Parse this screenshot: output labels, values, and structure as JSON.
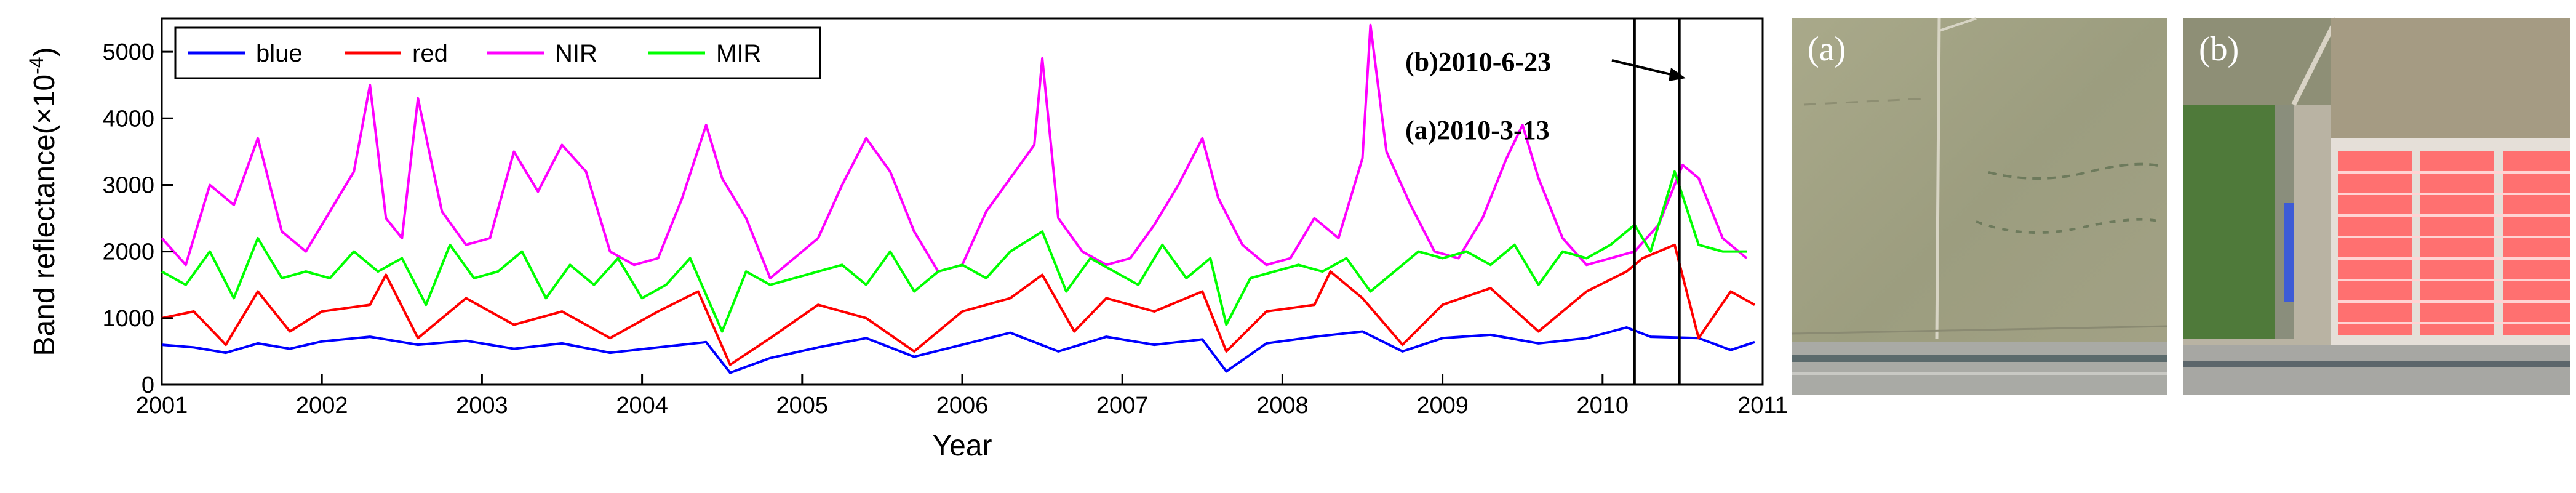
{
  "chart_data": {
    "type": "line",
    "xlabel": "Year",
    "ylabel": "Band reflectance(×10",
    "ylabel_exponent": "-4",
    "ylabel_close": ")",
    "xlim": [
      2001,
      2011
    ],
    "ylim": [
      0,
      5500
    ],
    "x_ticks": [
      "2001",
      "2002",
      "2003",
      "2004",
      "2005",
      "2006",
      "2007",
      "2008",
      "2009",
      "2010",
      "2011"
    ],
    "y_ticks": [
      "0",
      "1000",
      "2000",
      "3000",
      "4000",
      "5000"
    ],
    "legend_position": "top-left",
    "grid": false,
    "series": [
      {
        "name": "blue",
        "color": "#0000ff",
        "x": [
          2001.0,
          2001.2,
          2001.4,
          2001.6,
          2001.8,
          2002.0,
          2002.3,
          2002.6,
          2002.9,
          2003.2,
          2003.5,
          2003.8,
          2004.1,
          2004.4,
          2004.55,
          2004.8,
          2005.1,
          2005.4,
          2005.7,
          2006.0,
          2006.3,
          2006.6,
          2006.9,
          2007.2,
          2007.5,
          2007.65,
          2007.9,
          2008.2,
          2008.5,
          2008.75,
          2009.0,
          2009.3,
          2009.6,
          2009.9,
          2010.15,
          2010.3,
          2010.6,
          2010.8,
          2010.95
        ],
        "y": [
          600,
          560,
          480,
          620,
          540,
          650,
          720,
          600,
          660,
          540,
          620,
          480,
          560,
          640,
          180,
          400,
          560,
          700,
          420,
          600,
          780,
          500,
          720,
          600,
          680,
          200,
          620,
          720,
          800,
          500,
          700,
          750,
          620,
          700,
          860,
          720,
          700,
          520,
          640
        ]
      },
      {
        "name": "red",
        "color": "#ff0000",
        "x": [
          2001.0,
          2001.2,
          2001.4,
          2001.6,
          2001.8,
          2002.0,
          2002.3,
          2002.4,
          2002.6,
          2002.9,
          2003.2,
          2003.5,
          2003.8,
          2004.1,
          2004.35,
          2004.55,
          2004.8,
          2005.1,
          2005.4,
          2005.7,
          2006.0,
          2006.3,
          2006.5,
          2006.7,
          2006.9,
          2007.2,
          2007.5,
          2007.65,
          2007.9,
          2008.2,
          2008.3,
          2008.5,
          2008.75,
          2009.0,
          2009.3,
          2009.6,
          2009.9,
          2010.15,
          2010.25,
          2010.45,
          2010.6,
          2010.8,
          2010.95
        ],
        "y": [
          1000,
          1100,
          600,
          1400,
          800,
          1100,
          1200,
          1650,
          700,
          1300,
          900,
          1100,
          700,
          1100,
          1400,
          300,
          700,
          1200,
          1000,
          500,
          1100,
          1300,
          1650,
          800,
          1300,
          1100,
          1400,
          500,
          1100,
          1200,
          1700,
          1300,
          600,
          1200,
          1450,
          800,
          1400,
          1700,
          1900,
          2100,
          700,
          1400,
          1200
        ]
      },
      {
        "name": "NIR",
        "color": "#ff00ff",
        "x": [
          2001.0,
          2001.15,
          2001.3,
          2001.45,
          2001.6,
          2001.75,
          2001.9,
          2002.05,
          2002.2,
          2002.3,
          2002.4,
          2002.5,
          2002.6,
          2002.75,
          2002.9,
          2003.05,
          2003.2,
          2003.35,
          2003.5,
          2003.65,
          2003.8,
          2003.95,
          2004.1,
          2004.25,
          2004.4,
          2004.5,
          2004.65,
          2004.8,
          2004.95,
          2005.1,
          2005.25,
          2005.4,
          2005.55,
          2005.7,
          2005.85,
          2006.0,
          2006.15,
          2006.3,
          2006.45,
          2006.5,
          2006.6,
          2006.75,
          2006.9,
          2007.05,
          2007.2,
          2007.35,
          2007.5,
          2007.6,
          2007.75,
          2007.9,
          2008.05,
          2008.2,
          2008.35,
          2008.5,
          2008.55,
          2008.65,
          2008.8,
          2008.95,
          2009.1,
          2009.25,
          2009.4,
          2009.5,
          2009.6,
          2009.75,
          2009.9,
          2010.05,
          2010.2,
          2010.35,
          2010.5,
          2010.6,
          2010.75,
          2010.9
        ],
        "y": [
          2200,
          1800,
          3000,
          2700,
          3700,
          2300,
          2000,
          2600,
          3200,
          4500,
          2500,
          2200,
          4300,
          2600,
          2100,
          2200,
          3500,
          2900,
          3600,
          3200,
          2000,
          1800,
          1900,
          2800,
          3900,
          3100,
          2500,
          1600,
          1900,
          2200,
          3000,
          3700,
          3200,
          2300,
          1700,
          1800,
          2600,
          3100,
          3600,
          4900,
          2500,
          2000,
          1800,
          1900,
          2400,
          3000,
          3700,
          2800,
          2100,
          1800,
          1900,
          2500,
          2200,
          3400,
          5400,
          3500,
          2700,
          2000,
          1900,
          2500,
          3400,
          3900,
          3100,
          2200,
          1800,
          1900,
          2000,
          2400,
          3300,
          3100,
          2200,
          1900
        ]
      },
      {
        "name": "MIR",
        "color": "#00ff00",
        "x": [
          2001.0,
          2001.15,
          2001.3,
          2001.45,
          2001.6,
          2001.75,
          2001.9,
          2002.05,
          2002.2,
          2002.35,
          2002.5,
          2002.65,
          2002.8,
          2002.95,
          2003.1,
          2003.25,
          2003.4,
          2003.55,
          2003.7,
          2003.85,
          2004.0,
          2004.15,
          2004.3,
          2004.5,
          2004.65,
          2004.8,
          2004.95,
          2005.1,
          2005.25,
          2005.4,
          2005.55,
          2005.7,
          2005.85,
          2006.0,
          2006.15,
          2006.3,
          2006.5,
          2006.65,
          2006.8,
          2006.95,
          2007.1,
          2007.25,
          2007.4,
          2007.55,
          2007.65,
          2007.8,
          2007.95,
          2008.1,
          2008.25,
          2008.4,
          2008.55,
          2008.7,
          2008.85,
          2009.0,
          2009.15,
          2009.3,
          2009.45,
          2009.6,
          2009.75,
          2009.9,
          2010.05,
          2010.2,
          2010.3,
          2010.45,
          2010.6,
          2010.75,
          2010.9
        ],
        "y": [
          1700,
          1500,
          2000,
          1300,
          2200,
          1600,
          1700,
          1600,
          2000,
          1700,
          1900,
          1200,
          2100,
          1600,
          1700,
          2000,
          1300,
          1800,
          1500,
          1900,
          1300,
          1500,
          1900,
          800,
          1700,
          1500,
          1600,
          1700,
          1800,
          1500,
          2000,
          1400,
          1700,
          1800,
          1600,
          2000,
          2300,
          1400,
          1900,
          1700,
          1500,
          2100,
          1600,
          1900,
          900,
          1600,
          1700,
          1800,
          1700,
          1900,
          1400,
          1700,
          2000,
          1900,
          2000,
          1800,
          2100,
          1500,
          2000,
          1900,
          2100,
          2400,
          2000,
          3200,
          2100,
          2000,
          2000
        ]
      }
    ],
    "annotations": [
      {
        "label": "(b)2010-6-23",
        "x": 2010.48
      },
      {
        "label": "(a)2010-3-13",
        "x": 2010.2
      }
    ]
  },
  "photos": [
    {
      "label": "(a)",
      "name": "photo-a"
    },
    {
      "label": "(b)",
      "name": "photo-b"
    }
  ]
}
